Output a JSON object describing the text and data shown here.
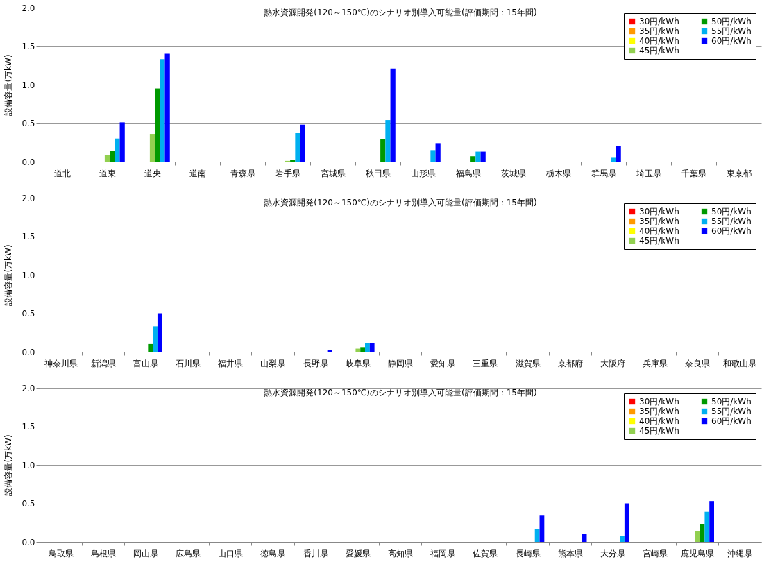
{
  "chart_data": [
    {
      "type": "bar",
      "title": "熱水資源開発(120～150℃)のシナリオ別導入可能量(評価期間：15年間)",
      "ylabel": "設備容量(万kW)",
      "categories": [
        "道北",
        "道東",
        "道央",
        "道南",
        "青森県",
        "岩手県",
        "宮城県",
        "秋田県",
        "山形県",
        "福島県",
        "茨城県",
        "栃木県",
        "群馬県",
        "埼玉県",
        "千葉県",
        "東京都"
      ],
      "ylim": [
        0,
        2
      ],
      "yticks": [
        {
          "value": 0,
          "label": "0.0"
        },
        {
          "value": 0.5,
          "label": "0.5"
        },
        {
          "value": 1,
          "label": "1.0"
        },
        {
          "value": 1.5,
          "label": "1.5"
        },
        {
          "value": 2,
          "label": "2.0"
        }
      ],
      "grid": "y",
      "legend": "top right",
      "series": [
        {
          "name": "30円/kWh",
          "color": "#ff0000",
          "values": [
            0,
            0,
            0,
            0,
            0,
            0,
            0,
            0,
            0,
            0,
            0,
            0,
            0,
            0,
            0,
            0
          ]
        },
        {
          "name": "35円/kWh",
          "color": "#ff9900",
          "values": [
            0,
            0,
            0,
            0,
            0,
            0,
            0,
            0,
            0,
            0,
            0,
            0,
            0,
            0,
            0,
            0
          ]
        },
        {
          "name": "40円/kWh",
          "color": "#ffff00",
          "values": [
            0,
            0,
            0,
            0,
            0,
            0,
            0,
            0,
            0,
            0,
            0,
            0,
            0,
            0,
            0,
            0
          ]
        },
        {
          "name": "45円/kWh",
          "color": "#92d050",
          "values": [
            0,
            0.09,
            0.36,
            0,
            0,
            0.01,
            0,
            0,
            0,
            0,
            0,
            0,
            0,
            0,
            0,
            0
          ]
        },
        {
          "name": "50円/kWh",
          "color": "#009900",
          "values": [
            0,
            0.14,
            0.95,
            0,
            0,
            0.02,
            0,
            0.29,
            0,
            0.07,
            0,
            0,
            0,
            0,
            0,
            0
          ]
        },
        {
          "name": "55円/kWh",
          "color": "#00b0f0",
          "values": [
            0,
            0.3,
            1.33,
            0,
            0,
            0.37,
            0,
            0.54,
            0.15,
            0.13,
            0,
            0,
            0.05,
            0,
            0,
            0
          ]
        },
        {
          "name": "60円/kWh",
          "color": "#0000ff",
          "values": [
            0,
            0.51,
            1.4,
            0,
            0,
            0.48,
            0,
            1.21,
            0.24,
            0.13,
            0,
            0,
            0.2,
            0,
            0,
            0
          ]
        }
      ]
    },
    {
      "type": "bar",
      "title": "熱水資源開発(120～150℃)のシナリオ別導入可能量(評価期間：15年間)",
      "ylabel": "設備容量(万kW)",
      "categories": [
        "神奈川県",
        "新潟県",
        "富山県",
        "石川県",
        "福井県",
        "山梨県",
        "長野県",
        "岐阜県",
        "静岡県",
        "愛知県",
        "三重県",
        "滋賀県",
        "京都府",
        "大阪府",
        "兵庫県",
        "奈良県",
        "和歌山県"
      ],
      "ylim": [
        0,
        2
      ],
      "yticks": [
        {
          "value": 0,
          "label": "0.0"
        },
        {
          "value": 0.5,
          "label": "0.5"
        },
        {
          "value": 1,
          "label": "1.0"
        },
        {
          "value": 1.5,
          "label": "1.5"
        },
        {
          "value": 2,
          "label": "2.0"
        }
      ],
      "grid": "y",
      "legend": "top right",
      "series": [
        {
          "name": "30円/kWh",
          "color": "#ff0000",
          "values": [
            0,
            0,
            0,
            0,
            0,
            0,
            0,
            0,
            0,
            0,
            0,
            0,
            0,
            0,
            0,
            0,
            0
          ]
        },
        {
          "name": "35円/kWh",
          "color": "#ff9900",
          "values": [
            0,
            0,
            0,
            0,
            0,
            0,
            0,
            0,
            0,
            0,
            0,
            0,
            0,
            0,
            0,
            0,
            0
          ]
        },
        {
          "name": "40円/kWh",
          "color": "#ffff00",
          "values": [
            0,
            0,
            0,
            0,
            0,
            0,
            0,
            0,
            0,
            0,
            0,
            0,
            0,
            0,
            0,
            0,
            0
          ]
        },
        {
          "name": "45円/kWh",
          "color": "#92d050",
          "values": [
            0,
            0,
            0,
            0,
            0,
            0,
            0,
            0.04,
            0,
            0,
            0,
            0,
            0,
            0,
            0,
            0,
            0
          ]
        },
        {
          "name": "50円/kWh",
          "color": "#009900",
          "values": [
            0,
            0,
            0.1,
            0,
            0,
            0,
            0,
            0.06,
            0,
            0,
            0,
            0,
            0,
            0,
            0,
            0,
            0
          ]
        },
        {
          "name": "55円/kWh",
          "color": "#00b0f0",
          "values": [
            0,
            0,
            0.33,
            0,
            0,
            0,
            0,
            0.11,
            0,
            0,
            0,
            0,
            0,
            0,
            0,
            0,
            0
          ]
        },
        {
          "name": "60円/kWh",
          "color": "#0000ff",
          "values": [
            0,
            0,
            0.5,
            0,
            0,
            0,
            0.02,
            0.11,
            0,
            0,
            0,
            0,
            0,
            0,
            0,
            0,
            0
          ]
        }
      ]
    },
    {
      "type": "bar",
      "title": "熱水資源開発(120～150℃)のシナリオ別導入可能量(評価期間：15年間)",
      "ylabel": "設備容量(万kW)",
      "categories": [
        "鳥取県",
        "島根県",
        "岡山県",
        "広島県",
        "山口県",
        "徳島県",
        "香川県",
        "愛媛県",
        "高知県",
        "福岡県",
        "佐賀県",
        "長崎県",
        "熊本県",
        "大分県",
        "宮崎県",
        "鹿児島県",
        "沖縄県"
      ],
      "ylim": [
        0,
        2
      ],
      "yticks": [
        {
          "value": 0,
          "label": "0.0"
        },
        {
          "value": 0.5,
          "label": "0.5"
        },
        {
          "value": 1,
          "label": "1.0"
        },
        {
          "value": 1.5,
          "label": "1.5"
        },
        {
          "value": 2,
          "label": "2.0"
        }
      ],
      "grid": "y",
      "legend": "top right",
      "series": [
        {
          "name": "30円/kWh",
          "color": "#ff0000",
          "values": [
            0,
            0,
            0,
            0,
            0,
            0,
            0,
            0,
            0,
            0,
            0,
            0,
            0,
            0,
            0,
            0,
            0
          ]
        },
        {
          "name": "35円/kWh",
          "color": "#ff9900",
          "values": [
            0,
            0,
            0,
            0,
            0,
            0,
            0,
            0,
            0,
            0,
            0,
            0,
            0,
            0,
            0,
            0,
            0
          ]
        },
        {
          "name": "40円/kWh",
          "color": "#ffff00",
          "values": [
            0,
            0,
            0,
            0,
            0,
            0,
            0,
            0,
            0,
            0,
            0,
            0,
            0,
            0,
            0,
            0,
            0
          ]
        },
        {
          "name": "45円/kWh",
          "color": "#92d050",
          "values": [
            0,
            0,
            0,
            0,
            0,
            0,
            0,
            0,
            0,
            0,
            0,
            0,
            0,
            0,
            0,
            0.14,
            0
          ]
        },
        {
          "name": "50円/kWh",
          "color": "#009900",
          "values": [
            0,
            0,
            0,
            0,
            0,
            0,
            0,
            0,
            0,
            0,
            0,
            0,
            0,
            0,
            0,
            0.23,
            0
          ]
        },
        {
          "name": "55円/kWh",
          "color": "#00b0f0",
          "values": [
            0,
            0,
            0,
            0,
            0,
            0,
            0,
            0,
            0,
            0,
            0,
            0.17,
            0,
            0.08,
            0,
            0.39,
            0
          ]
        },
        {
          "name": "60円/kWh",
          "color": "#0000ff",
          "values": [
            0,
            0,
            0,
            0,
            0,
            0,
            0,
            0,
            0,
            0,
            0,
            0.34,
            0.1,
            0.5,
            0,
            0.53,
            0
          ]
        }
      ]
    }
  ]
}
